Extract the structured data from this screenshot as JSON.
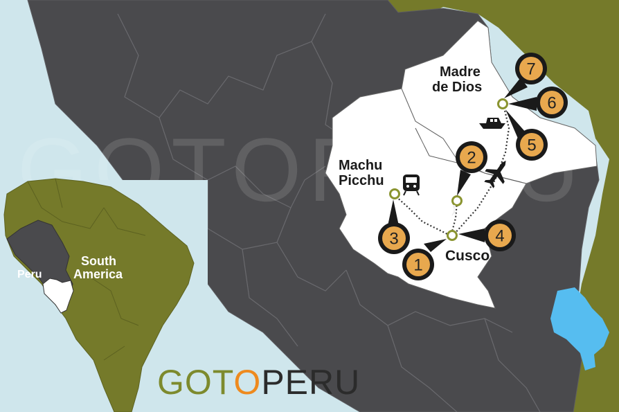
{
  "map": {
    "labels": {
      "machu_picchu_line1": "Machu",
      "machu_picchu_line2": "Picchu",
      "madre_de_dios_line1": "Madre",
      "madre_de_dios_line2": "de Dios",
      "cusco": "Cusco"
    },
    "inset": {
      "country": "Peru",
      "continent_line1": "South",
      "continent_line2": "America"
    },
    "markers": [
      "1",
      "2",
      "3",
      "4",
      "5",
      "6",
      "7"
    ],
    "watermark": "GOTOPERU",
    "colors": {
      "ocean": "#cfe6ec",
      "land": "#4a4a4d",
      "neighbor": "#757a2a",
      "region": "#ffffff",
      "marker": "#e8a84e",
      "lake": "#56bdf0"
    }
  },
  "brand": {
    "logo_part1": "GOT",
    "logo_part2": "O",
    "logo_part3": "PERU",
    "color_green": "#7d8a2d",
    "color_orange": "#ee8a1e",
    "color_dark": "#2b2b2b"
  }
}
